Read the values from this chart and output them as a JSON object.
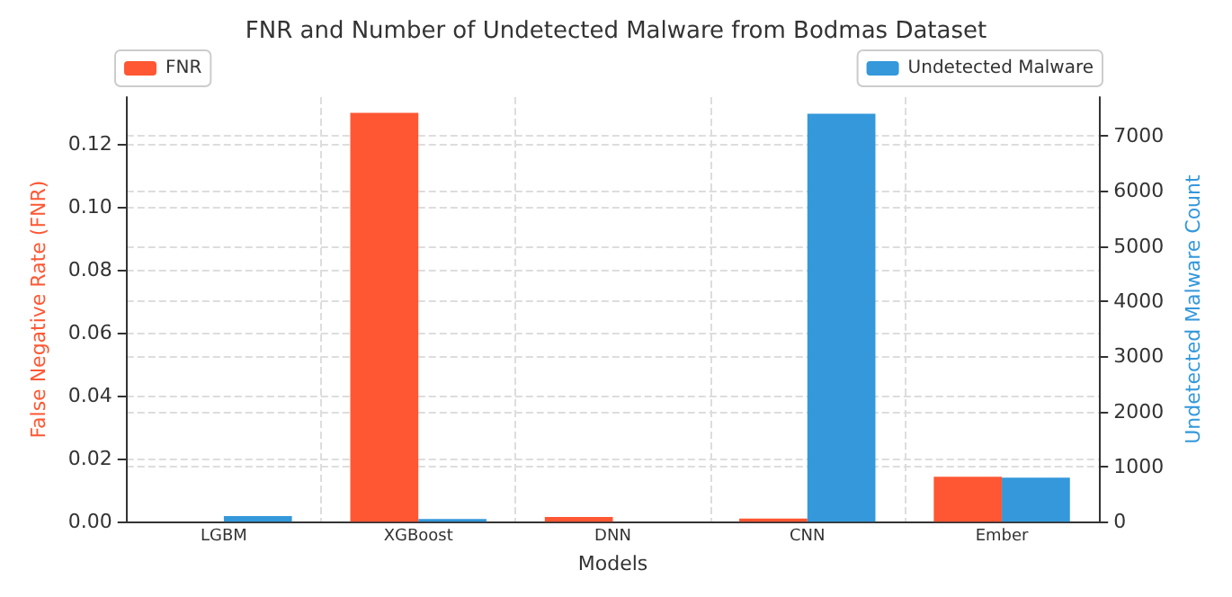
{
  "chart_data": {
    "type": "bar",
    "title": "FNR and Number of Undetected Malware from Bodmas Dataset",
    "xlabel": "Models",
    "ylabel": "False Negative Rate (FNR)",
    "y2label": "Undetected Malware Count",
    "categories": [
      "LGBM",
      "XGBoost",
      "DNN",
      "CNN",
      "Ember"
    ],
    "series": [
      {
        "name": "FNR",
        "color": "#ff5733",
        "values": [
          0,
          0.13,
          0.0015,
          0.001,
          0.0143
        ]
      },
      {
        "name": "Undetected Malware",
        "color": "#3498db",
        "axis": "y2",
        "values": [
          100,
          50,
          0,
          7400,
          800
        ]
      }
    ],
    "ylim": [
      0,
      0.135
    ],
    "yticks": [
      {
        "value": 0,
        "label": "0.00"
      },
      {
        "value": 0.02,
        "label": "0.02"
      },
      {
        "value": 0.04,
        "label": "0.04"
      },
      {
        "value": 0.06,
        "label": "0.06"
      },
      {
        "value": 0.08,
        "label": "0.08"
      },
      {
        "value": 0.1,
        "label": "0.10"
      },
      {
        "value": 0.12,
        "label": "0.12"
      }
    ],
    "y2lim": [
      0,
      7700
    ],
    "y2ticks": [
      0,
      1000,
      2000,
      3000,
      4000,
      5000,
      6000,
      7000
    ],
    "grid": true,
    "legend": "top"
  }
}
